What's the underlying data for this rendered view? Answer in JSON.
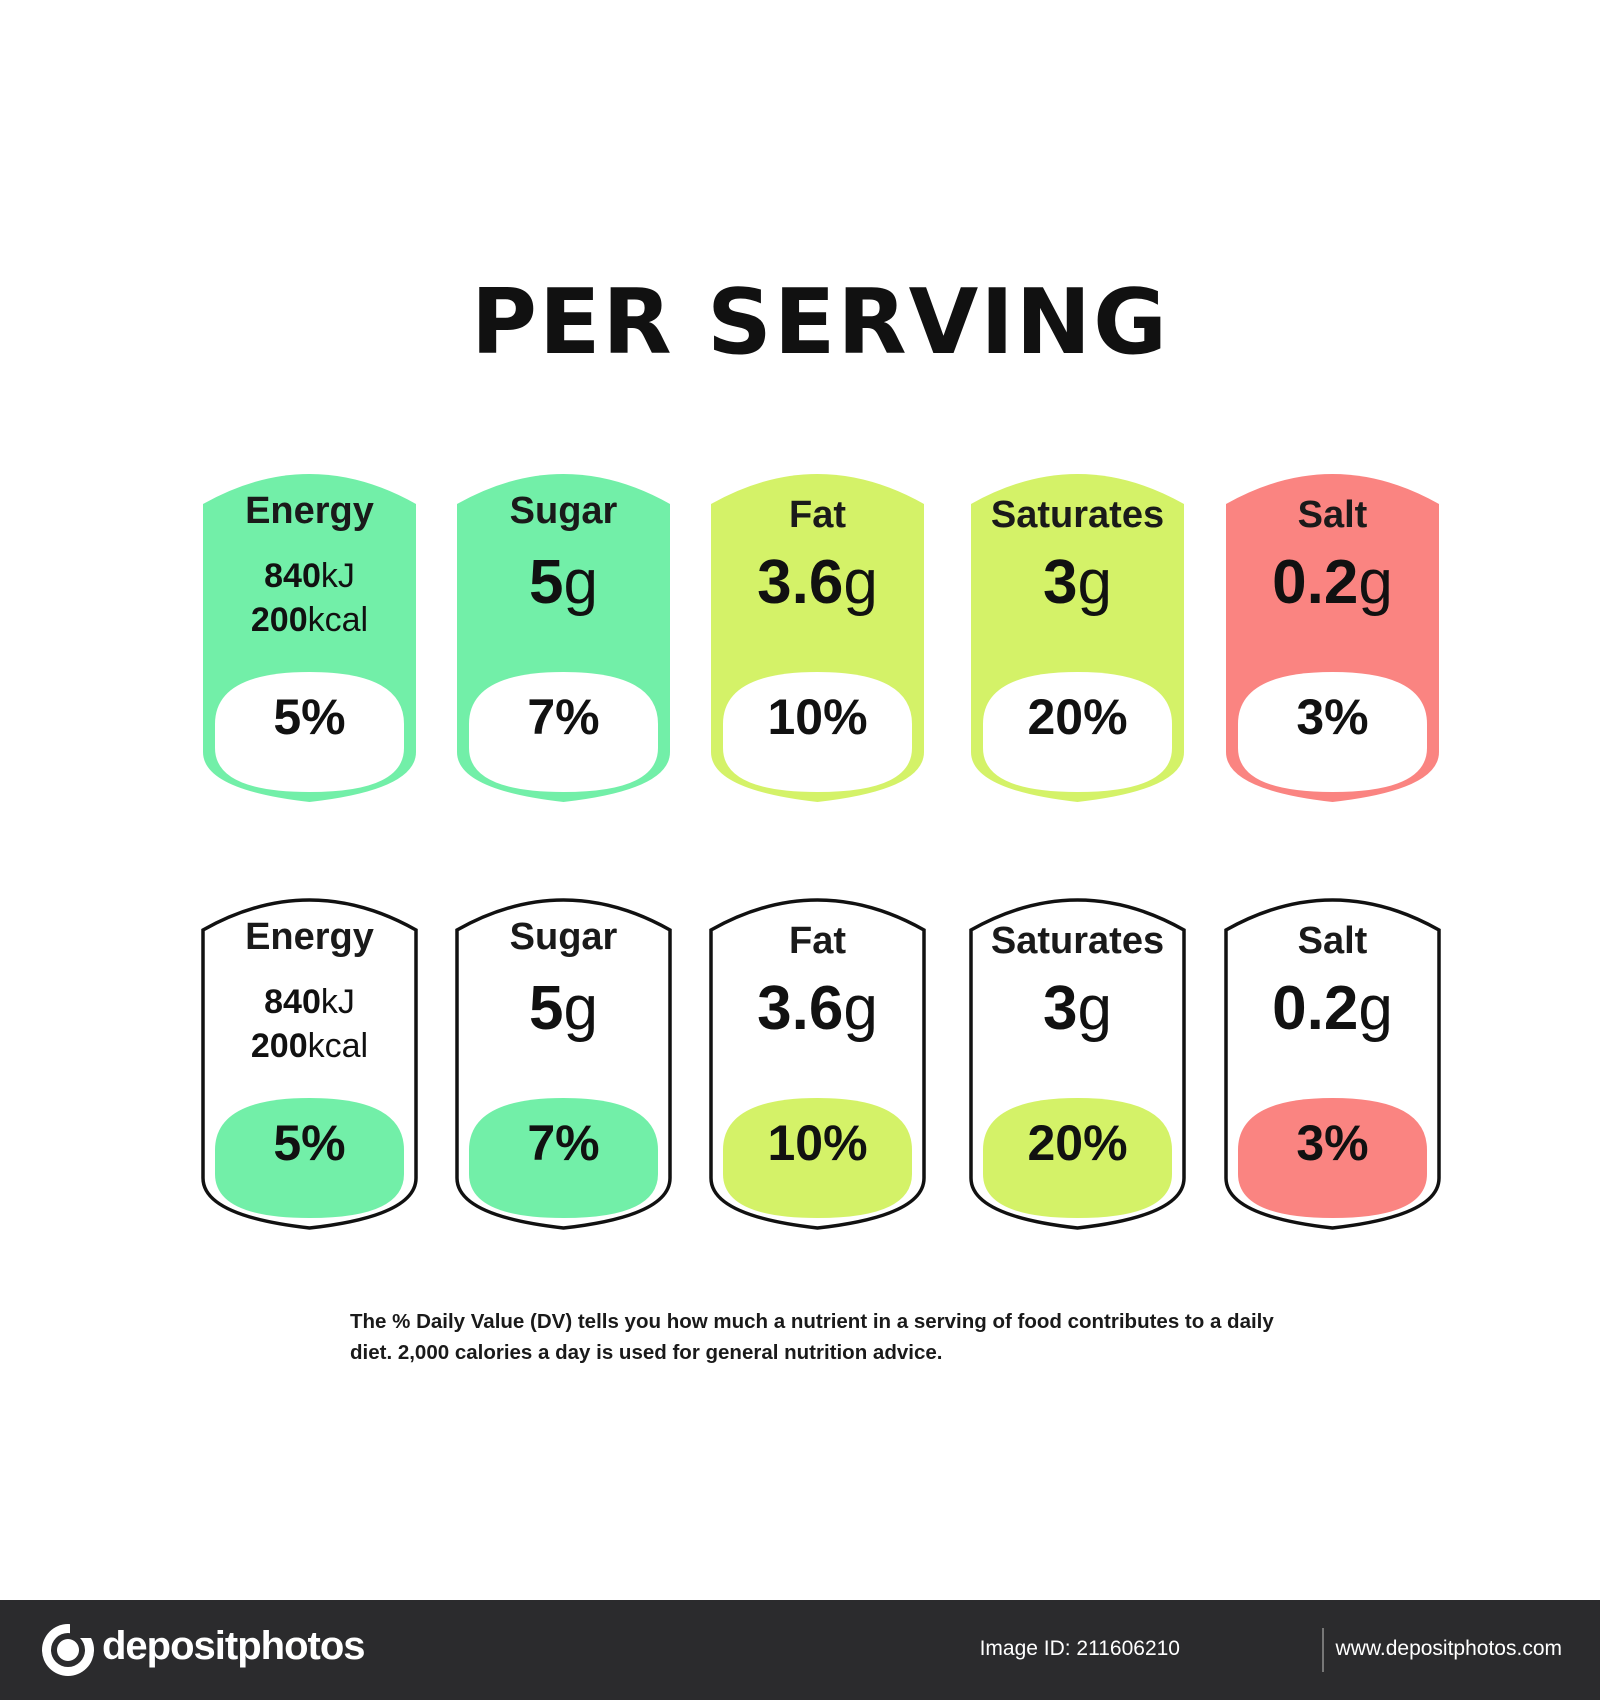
{
  "title": "PER SERVING",
  "colors": {
    "green": "#72efa8",
    "lime": "#d4f268",
    "red": "#fa8481",
    "outline": "#111111",
    "white": "#ffffff",
    "footer_bg": "#2b2b2d"
  },
  "labels": [
    {
      "name": "Energy",
      "energy_kj": "840",
      "energy_kj_unit": "kJ",
      "energy_kcal": "200",
      "energy_kcal_unit": "kcal",
      "percent": "5%",
      "color": "green"
    },
    {
      "name": "Sugar",
      "value": "5",
      "unit": "g",
      "percent": "7%",
      "color": "green"
    },
    {
      "name": "Fat",
      "value": "3.6",
      "unit": "g",
      "percent": "10%",
      "color": "lime"
    },
    {
      "name": "Saturates",
      "value": "3",
      "unit": "g",
      "percent": "20%",
      "color": "lime"
    },
    {
      "name": "Salt",
      "value": "0.2",
      "unit": "g",
      "percent": "3%",
      "color": "red"
    }
  ],
  "disclaimer": "The % Daily Value (DV) tells you how much a nutrient in a serving of food contributes to a daily diet. 2,000 calories a day is used for general nutrition advice.",
  "footer": {
    "brand": "depositphotos",
    "logo_icon": "depositphotos-logo-icon",
    "image_id": "Image ID: 211606210",
    "site": "www.depositphotos.com"
  }
}
